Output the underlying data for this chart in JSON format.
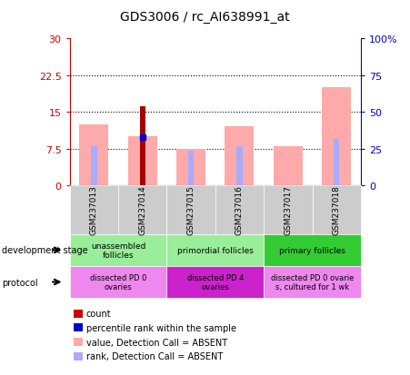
{
  "title": "GDS3006 / rc_AI638991_at",
  "samples": [
    "GSM237013",
    "GSM237014",
    "GSM237015",
    "GSM237016",
    "GSM237017",
    "GSM237018"
  ],
  "pink_bar_heights": [
    12.5,
    10.0,
    7.5,
    12.0,
    8.0,
    20.0
  ],
  "red_bar_heights": [
    0,
    16.2,
    0,
    0,
    0,
    0
  ],
  "blue_square_y": [
    null,
    9.8,
    null,
    null,
    null,
    null
  ],
  "blue_rank_heights": [
    8.0,
    null,
    7.0,
    8.0,
    null,
    9.5
  ],
  "ylim_left": [
    0,
    30
  ],
  "ylim_right": [
    0,
    100
  ],
  "yticks_left": [
    0,
    7.5,
    15,
    22.5,
    30
  ],
  "yticks_right": [
    0,
    25,
    50,
    75,
    100
  ],
  "ytick_labels_left": [
    "0",
    "7.5",
    "15",
    "22.5",
    "30"
  ],
  "ytick_labels_right": [
    "0",
    "25",
    "50",
    "75",
    "100%"
  ],
  "left_axis_color": "#cc0000",
  "right_axis_color": "#0000cc",
  "dev_stage_groups": [
    {
      "label": "unassembled\nfollicles",
      "start": 0,
      "end": 2,
      "color": "#99ee99"
    },
    {
      "label": "primordial follicles",
      "start": 2,
      "end": 4,
      "color": "#99ee99"
    },
    {
      "label": "primary follicles",
      "start": 4,
      "end": 6,
      "color": "#33cc33"
    }
  ],
  "protocol_groups": [
    {
      "label": "dissected PD 0\novaries",
      "start": 0,
      "end": 2,
      "color": "#ee88ee"
    },
    {
      "label": "dissected PD 4\novaries",
      "start": 2,
      "end": 4,
      "color": "#cc22cc"
    },
    {
      "label": "dissected PD 0 ovarie\ns, cultured for 1 wk",
      "start": 4,
      "end": 6,
      "color": "#ee88ee"
    }
  ],
  "legend_items": [
    {
      "color": "#cc0000",
      "label": "count"
    },
    {
      "color": "#0000cc",
      "label": "percentile rank within the sample"
    },
    {
      "color": "#ffaaaa",
      "label": "value, Detection Call = ABSENT"
    },
    {
      "color": "#aaaaff",
      "label": "rank, Detection Call = ABSENT"
    }
  ],
  "pink_bar_width": 0.6,
  "narrow_bar_width": 0.12,
  "sample_bg_color": "#cccccc",
  "bg_color": "#ffffff"
}
